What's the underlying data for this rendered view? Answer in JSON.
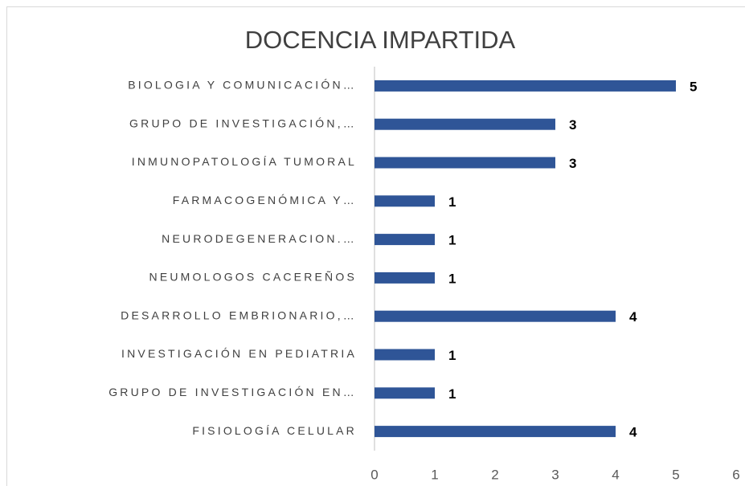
{
  "chart_data": {
    "type": "bar",
    "orientation": "horizontal",
    "title": "DOCENCIA IMPARTIDA",
    "categories": [
      "BIOLOGIA Y COMUNICACIÓN…",
      "GRUPO DE INVESTIGACIÓN,…",
      "INMUNOPATOLOGÍA TUMORAL",
      "FARMACOGENÓMICA Y…",
      "NEURODEGENERACION.…",
      "NEUMOLOGOS CACEREÑOS",
      "DESARROLLO EMBRIONARIO,…",
      "INVESTIGACIÓN EN PEDIATRIA",
      "GRUPO DE INVESTIGACIÓN EN…",
      "FISIOLOGÍA CELULAR"
    ],
    "values": [
      5,
      3,
      3,
      1,
      1,
      1,
      4,
      1,
      1,
      4
    ],
    "color": "#2f5597",
    "xlim": [
      0,
      6
    ],
    "xticks": [
      0,
      1,
      2,
      3,
      4,
      5,
      6
    ],
    "grid": false
  }
}
